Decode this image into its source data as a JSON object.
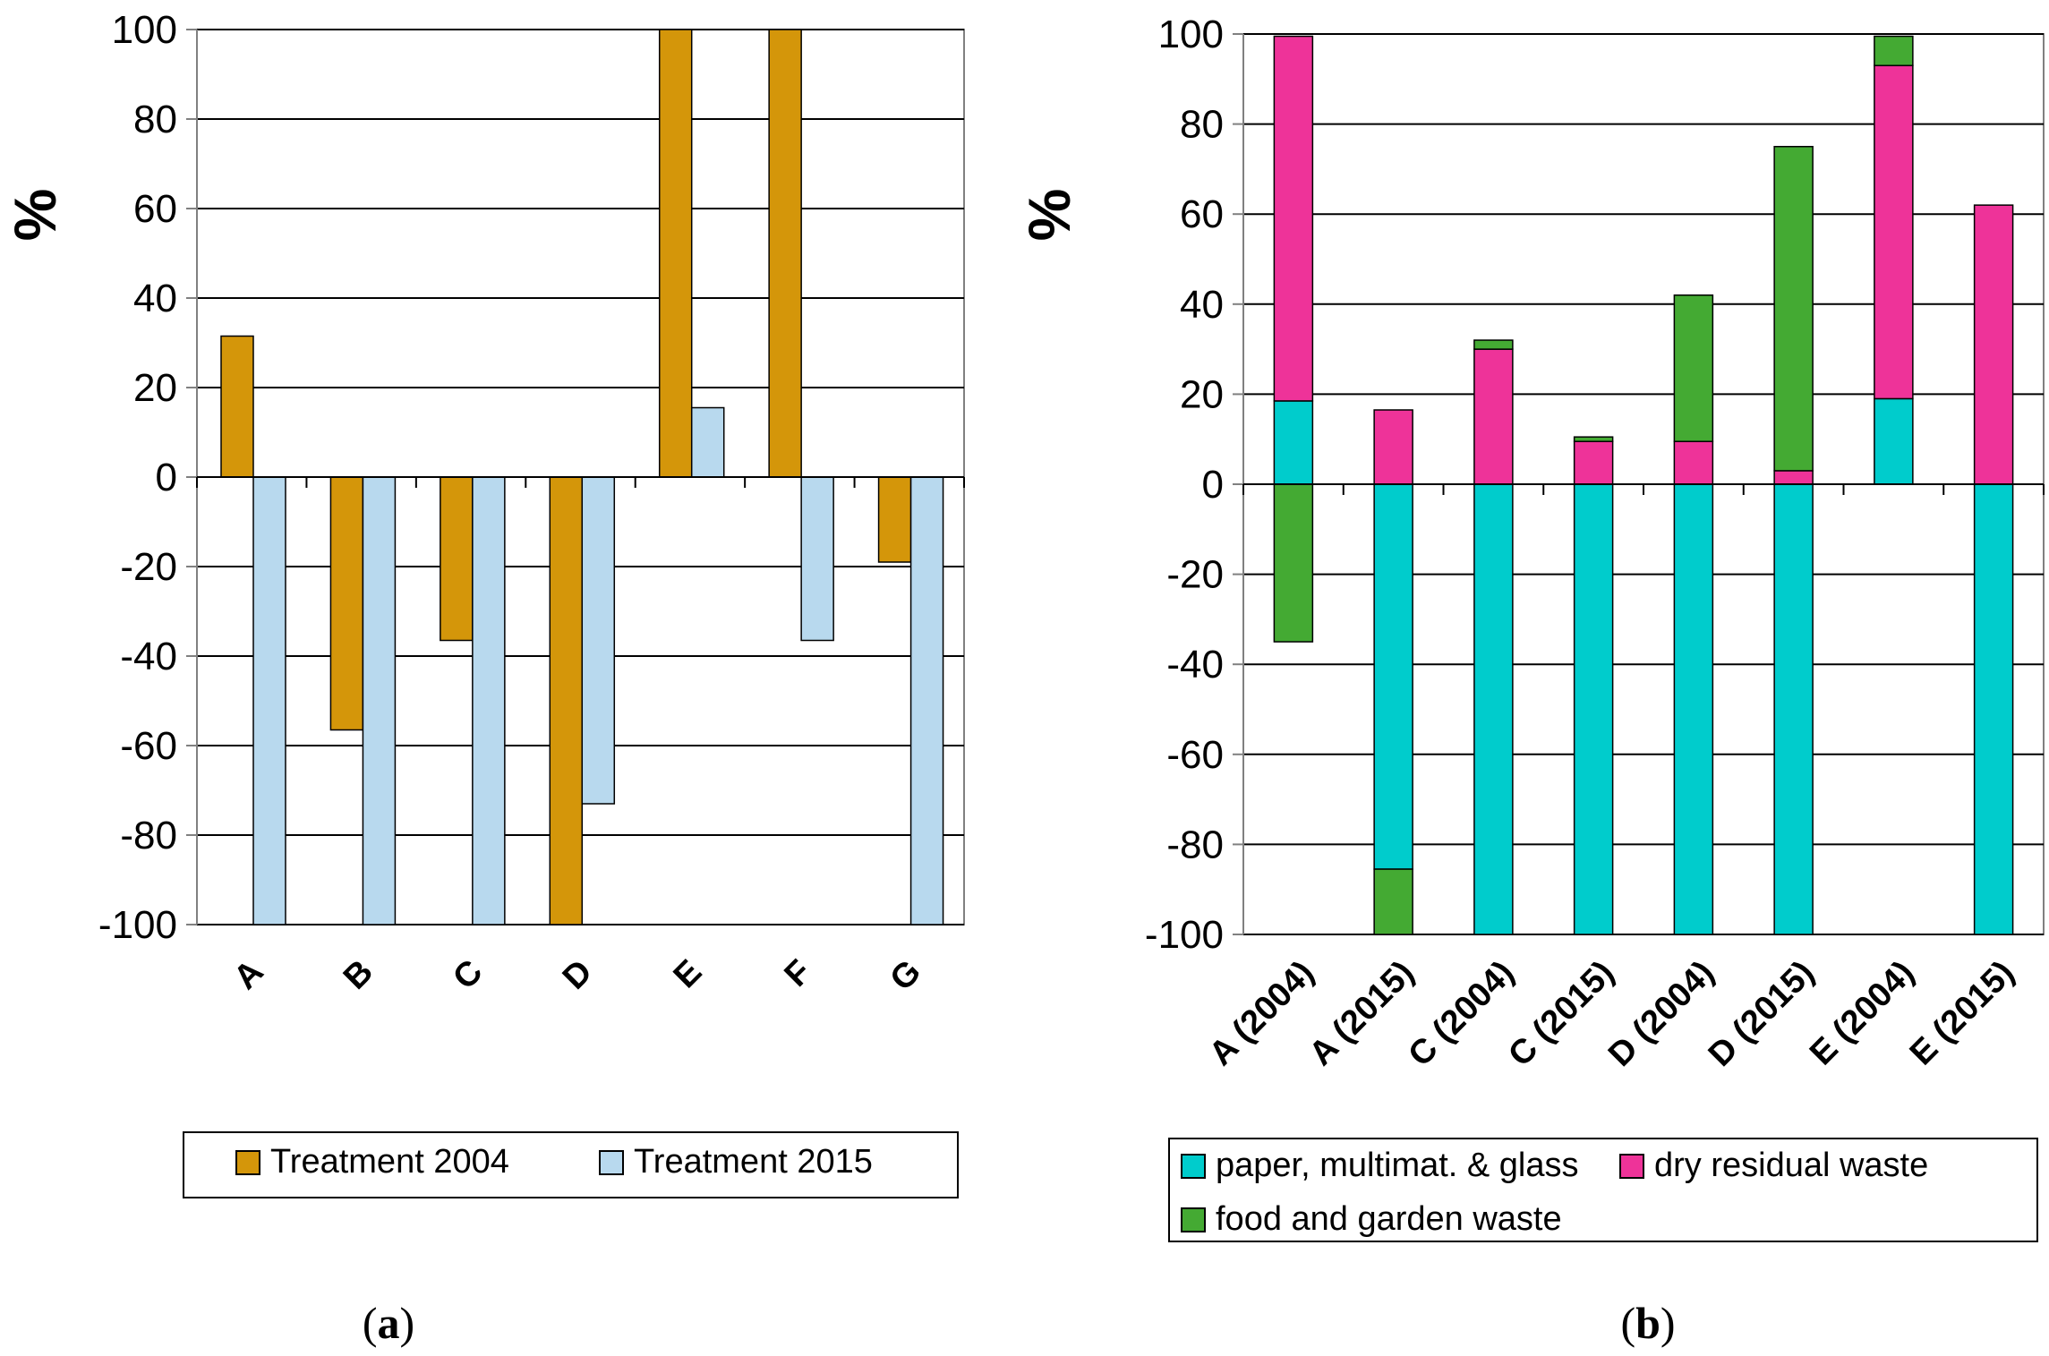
{
  "chart_data": [
    {
      "type": "bar",
      "panel_label": "a",
      "ylabel": "%",
      "ylim": [
        -100,
        100
      ],
      "yticks": [
        "100",
        "80",
        "60",
        "40",
        "20",
        "0",
        "-20",
        "-40",
        "-60",
        "-80",
        "-100"
      ],
      "grid": true,
      "categories": [
        "A",
        "B",
        "C",
        "D",
        "E",
        "F",
        "G"
      ],
      "series": [
        {
          "name": "Treatment 2004",
          "color": "#D4960A",
          "values": [
            31.5,
            -56.5,
            -36.5,
            -100,
            100,
            100,
            -19
          ]
        },
        {
          "name": "Treatment 2015",
          "color": "#B8D9EE",
          "values": [
            -100,
            -100,
            -100,
            -73,
            15.5,
            -36.5,
            -100
          ]
        }
      ],
      "legend_position": "bottom"
    },
    {
      "type": "bar",
      "stacked": true,
      "panel_label": "b",
      "ylabel": "%",
      "ylim": [
        -100,
        100
      ],
      "yticks": [
        "100",
        "80",
        "60",
        "40",
        "20",
        "0",
        "-20",
        "-40",
        "-60",
        "-80",
        "-100"
      ],
      "grid": true,
      "categories": [
        "A (2004)",
        "A (2015)",
        "C (2004)",
        "C (2015)",
        "D (2004)",
        "D (2015)",
        "E (2004)",
        "E (2015)"
      ],
      "series": [
        {
          "name": "paper, multimat. & glass",
          "color": "#00CCCC",
          "values": [
            18.5,
            -85.5,
            -100,
            -100,
            -100,
            -100,
            19,
            -100
          ]
        },
        {
          "name": "dry residual waste",
          "color": "#EE3399",
          "values": [
            81,
            16.5,
            30,
            9.5,
            9.5,
            3,
            74,
            62
          ]
        },
        {
          "name": "food and garden waste",
          "color": "#44AA33",
          "values": [
            -35,
            -14.5,
            2,
            1,
            32.5,
            72,
            6.5,
            0
          ]
        }
      ],
      "legend_position": "bottom"
    }
  ]
}
